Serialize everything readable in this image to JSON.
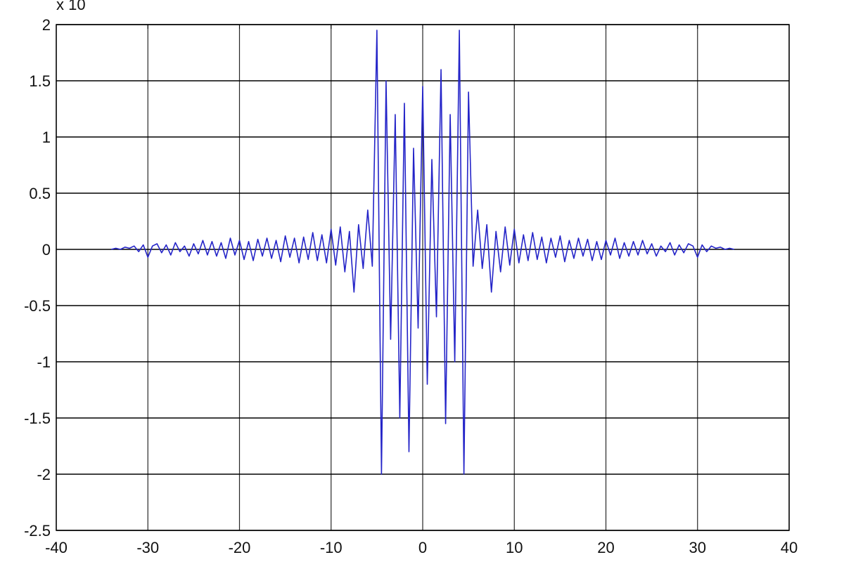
{
  "chart_data": {
    "type": "line",
    "y_multiplier": "x 10",
    "x": [
      -34,
      -33.5,
      -33,
      -32.5,
      -32,
      -31.5,
      -31,
      -30.5,
      -30,
      -29.5,
      -29,
      -28.5,
      -28,
      -27.5,
      -27,
      -26.5,
      -26,
      -25.5,
      -25,
      -24.5,
      -24,
      -23.5,
      -23,
      -22.5,
      -22,
      -21.5,
      -21,
      -20.5,
      -20,
      -19.5,
      -19,
      -18.5,
      -18,
      -17.5,
      -17,
      -16.5,
      -16,
      -15.5,
      -15,
      -14.5,
      -14,
      -13.5,
      -13,
      -12.5,
      -12,
      -11.5,
      -11,
      -10.5,
      -10,
      -9.5,
      -9,
      -8.5,
      -8,
      -7.5,
      -7,
      -6.5,
      -6,
      -5.5,
      -5,
      -4.5,
      -4,
      -3.5,
      -3,
      -2.5,
      -2,
      -1.5,
      -1,
      -0.5,
      0,
      0.5,
      1,
      1.5,
      2,
      2.5,
      3,
      3.5,
      4,
      4.5,
      5,
      5.5,
      6,
      6.5,
      7,
      7.5,
      8,
      8.5,
      9,
      9.5,
      10,
      10.5,
      11,
      11.5,
      12,
      12.5,
      13,
      13.5,
      14,
      14.5,
      15,
      15.5,
      16,
      16.5,
      17,
      17.5,
      18,
      18.5,
      19,
      19.5,
      20,
      20.5,
      21,
      21.5,
      22,
      22.5,
      23,
      23.5,
      24,
      24.5,
      25,
      25.5,
      26,
      26.5,
      27,
      27.5,
      28,
      28.5,
      29,
      29.5,
      30,
      30.5,
      31,
      31.5,
      32,
      32.5,
      33,
      33.5,
      34
    ],
    "values": [
      0,
      0.01,
      0,
      0.02,
      0.01,
      0.03,
      -0.02,
      0.04,
      -0.07,
      0.03,
      0.05,
      -0.03,
      0.04,
      -0.05,
      0.06,
      -0.02,
      0.03,
      -0.06,
      0.05,
      -0.04,
      0.08,
      -0.05,
      0.07,
      -0.06,
      0.06,
      -0.08,
      0.1,
      -0.05,
      0.08,
      -0.09,
      0.07,
      -0.1,
      0.09,
      -0.06,
      0.1,
      -0.08,
      0.08,
      -0.11,
      0.12,
      -0.07,
      0.1,
      -0.12,
      0.11,
      -0.09,
      0.15,
      -0.1,
      0.13,
      -0.12,
      0.18,
      -0.14,
      0.2,
      -0.2,
      0.16,
      -0.38,
      0.22,
      -0.17,
      0.35,
      -0.15,
      1.95,
      -2,
      1.5,
      -0.8,
      1.2,
      -1.5,
      1.3,
      -1.8,
      0.9,
      -0.7,
      1.45,
      -1.2,
      0.8,
      -0.6,
      1.6,
      -1.55,
      1.2,
      -1,
      1.95,
      -2,
      1.4,
      -0.15,
      0.35,
      -0.17,
      0.22,
      -0.38,
      0.16,
      -0.2,
      0.2,
      -0.14,
      0.18,
      -0.12,
      0.13,
      -0.1,
      0.15,
      -0.09,
      0.11,
      -0.12,
      0.1,
      -0.07,
      0.12,
      -0.11,
      0.08,
      -0.08,
      0.1,
      -0.06,
      0.09,
      -0.1,
      0.07,
      -0.09,
      0.08,
      -0.05,
      0.1,
      -0.08,
      0.06,
      -0.06,
      0.07,
      -0.05,
      0.08,
      -0.04,
      0.05,
      -0.06,
      0.03,
      -0.02,
      0.06,
      -0.05,
      0.04,
      -0.03,
      0.05,
      0.03,
      -0.07,
      0.04,
      -0.02,
      0.03,
      0.01,
      0.02,
      0,
      0.01,
      0
    ],
    "color": "#2424c8",
    "xlim": [
      -40,
      40
    ],
    "xticks": [
      -40,
      -30,
      -20,
      -10,
      0,
      10,
      20,
      30,
      40
    ],
    "ylim": [
      -2.5,
      2
    ],
    "yticks": [
      -2.5,
      -2,
      -1.5,
      -1,
      -0.5,
      0,
      0.5,
      1,
      1.5,
      2
    ],
    "grid": true
  }
}
